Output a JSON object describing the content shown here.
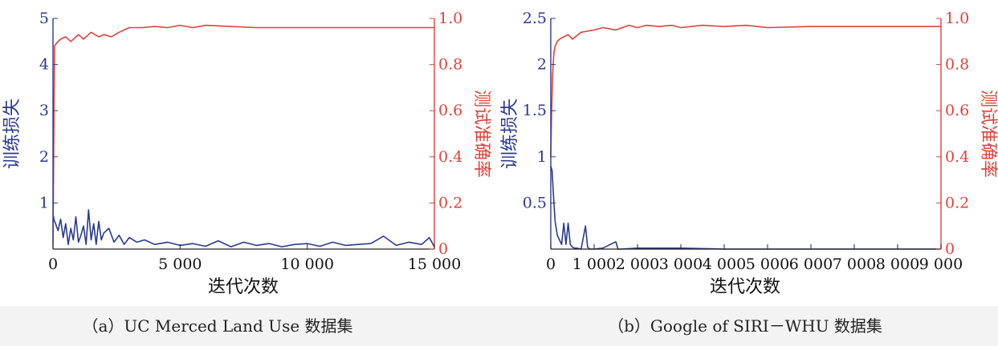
{
  "chart_data": [
    {
      "type": "line",
      "panel": "a",
      "caption": "（a）UC Merced Land Use 数据集",
      "xlabel": "迭代次数",
      "ylabel_left": "训练损失",
      "ylabel_right": "测试准确率",
      "xlim": [
        0,
        15000
      ],
      "ylim_left": [
        0,
        5
      ],
      "ylim_right": [
        0,
        1.0
      ],
      "x_ticks": [
        0,
        5000,
        10000,
        15000
      ],
      "x_tick_labels": [
        "0",
        "5 000",
        "10 000",
        "15 000"
      ],
      "y_left_ticks": [
        1,
        2,
        3,
        4,
        5
      ],
      "y_left_tick_labels": [
        "1",
        "2",
        "3",
        "4",
        "5"
      ],
      "y_right_ticks": [
        0,
        0.2,
        0.4,
        0.6,
        0.8,
        1.0
      ],
      "y_right_tick_labels": [
        "0",
        "0.2",
        "0.4",
        "0.6",
        "0.8",
        "1.0"
      ],
      "grid": false,
      "colors": {
        "loss": "#2b3a93",
        "accuracy": "#e0423a"
      },
      "series": [
        {
          "axis": "left",
          "x": [
            0,
            50,
            100,
            200,
            300,
            400,
            500,
            600,
            700,
            800,
            900,
            1000,
            1100,
            1200,
            1300,
            1400,
            1500,
            1600,
            1700,
            1800,
            1900,
            2000,
            2200,
            2400,
            2600,
            2800,
            3000,
            3300,
            3600,
            4000,
            4500,
            5000,
            5500,
            6000,
            6500,
            7000,
            7500,
            8000,
            8500,
            9000,
            9500,
            10000,
            10500,
            11000,
            11500,
            12000,
            12500,
            13000,
            13500,
            14000,
            14500,
            14800,
            15000
          ],
          "values": [
            0.75,
            0.62,
            0.55,
            0.4,
            0.65,
            0.25,
            0.55,
            0.1,
            0.45,
            0.2,
            0.7,
            0.15,
            0.3,
            0.5,
            0.1,
            0.85,
            0.2,
            0.55,
            0.1,
            0.6,
            0.2,
            0.35,
            0.45,
            0.15,
            0.3,
            0.1,
            0.25,
            0.15,
            0.2,
            0.1,
            0.15,
            0.08,
            0.12,
            0.06,
            0.18,
            0.05,
            0.15,
            0.08,
            0.12,
            0.05,
            0.1,
            0.12,
            0.06,
            0.15,
            0.08,
            0.1,
            0.12,
            0.28,
            0.08,
            0.15,
            0.1,
            0.25,
            0.05
          ]
        },
        {
          "axis": "right",
          "x": [
            0,
            60,
            120,
            200,
            300,
            500,
            700,
            1000,
            1200,
            1500,
            1800,
            2000,
            2300,
            2600,
            2800,
            3000,
            3500,
            4000,
            4500,
            5000,
            5500,
            6000,
            7000,
            8000,
            9000,
            10000,
            11000,
            12000,
            13000,
            14000,
            15000
          ],
          "values": [
            0.02,
            0.88,
            0.89,
            0.9,
            0.91,
            0.92,
            0.9,
            0.93,
            0.91,
            0.94,
            0.92,
            0.93,
            0.92,
            0.94,
            0.95,
            0.96,
            0.96,
            0.965,
            0.96,
            0.97,
            0.96,
            0.97,
            0.965,
            0.96,
            0.96,
            0.96,
            0.96,
            0.96,
            0.96,
            0.96,
            0.96
          ]
        }
      ]
    },
    {
      "type": "line",
      "panel": "b",
      "caption": "（b）Google of SIRI－WHU 数据集",
      "xlabel": "迭代次数",
      "ylabel_left": "训练损失",
      "ylabel_right": "测试准确率",
      "xlim": [
        0,
        9000
      ],
      "ylim_left": [
        0,
        2.5
      ],
      "ylim_right": [
        0,
        1.0
      ],
      "x_ticks": [
        0,
        1000,
        2000,
        3000,
        4000,
        5000,
        6000,
        7000,
        8000,
        9000
      ],
      "x_tick_labels": [
        "0",
        "1 000",
        "2 000",
        "3 000",
        "4 000",
        "5 000",
        "6 000",
        "7 000",
        "8 000",
        "9 000"
      ],
      "y_left_ticks": [
        0.5,
        1,
        1.5,
        2,
        2.5
      ],
      "y_left_tick_labels": [
        "0.5",
        "1",
        "1.5",
        "2",
        "2.5"
      ],
      "y_right_ticks": [
        0,
        0.2,
        0.4,
        0.6,
        0.8,
        1.0
      ],
      "y_right_tick_labels": [
        "0",
        "0.2",
        "0.4",
        "0.6",
        "0.8",
        "1.0"
      ],
      "grid": false,
      "colors": {
        "loss": "#2b3a93",
        "accuracy": "#e0423a"
      },
      "series": [
        {
          "axis": "left",
          "x": [
            0,
            30,
            60,
            100,
            150,
            200,
            250,
            300,
            350,
            400,
            450,
            500,
            550,
            600,
            700,
            800,
            850,
            900,
            1000,
            1200,
            1500,
            1550,
            1600,
            2000,
            3000,
            4000,
            5000,
            6000,
            7000,
            8000,
            9000
          ],
          "values": [
            0.9,
            0.85,
            0.6,
            0.3,
            0.15,
            0.1,
            0.05,
            0.28,
            0.05,
            0.28,
            0.05,
            0.02,
            0.01,
            0.01,
            0.0,
            0.25,
            0.02,
            0.0,
            0.0,
            0.01,
            0.08,
            0.0,
            0.0,
            0.01,
            0.01,
            0.0,
            0.0,
            0.0,
            0.0,
            0.0,
            0.0
          ]
        },
        {
          "axis": "right",
          "x": [
            0,
            20,
            40,
            70,
            100,
            150,
            200,
            300,
            400,
            500,
            700,
            1000,
            1200,
            1500,
            1800,
            2000,
            2200,
            2500,
            2800,
            3000,
            3500,
            4000,
            4500,
            5000,
            6000,
            7000,
            8000,
            9000
          ],
          "values": [
            0.4,
            0.6,
            0.75,
            0.85,
            0.88,
            0.9,
            0.91,
            0.92,
            0.93,
            0.91,
            0.94,
            0.95,
            0.96,
            0.95,
            0.97,
            0.96,
            0.97,
            0.965,
            0.97,
            0.96,
            0.97,
            0.965,
            0.97,
            0.96,
            0.965,
            0.965,
            0.965,
            0.965
          ]
        }
      ]
    }
  ]
}
